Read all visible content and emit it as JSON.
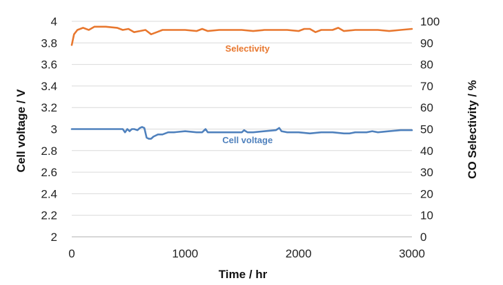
{
  "chart_data": {
    "type": "line",
    "xlabel": "Time / hr",
    "ylabel_left": "Cell voltage / V",
    "ylabel_right": "CO Selectivity / %",
    "xlim": [
      0,
      3000
    ],
    "x_ticks": [
      "0",
      "1000",
      "2000",
      "3000"
    ],
    "ylim_left": [
      2,
      4
    ],
    "y_ticks_left": [
      "2",
      "2.2",
      "2.4",
      "2.6",
      "2.8",
      "3",
      "3.2",
      "3.4",
      "3.6",
      "3.8",
      "4"
    ],
    "ylim_right": [
      0,
      100
    ],
    "y_ticks_right": [
      "0",
      "10",
      "20",
      "30",
      "40",
      "50",
      "60",
      "70",
      "80",
      "90",
      "100"
    ],
    "grid": "horizontal",
    "legend": "none",
    "series": [
      {
        "name": "Selectivity",
        "axis": "right",
        "color": "#E8772E",
        "x": [
          0,
          20,
          50,
          100,
          150,
          200,
          300,
          400,
          450,
          500,
          550,
          600,
          650,
          700,
          750,
          800,
          900,
          1000,
          1100,
          1150,
          1200,
          1300,
          1400,
          1500,
          1600,
          1700,
          1800,
          1900,
          2000,
          2050,
          2100,
          2150,
          2200,
          2300,
          2350,
          2400,
          2500,
          2600,
          2700,
          2800,
          2900,
          3000
        ],
        "values": [
          89,
          94,
          96,
          97,
          96,
          97.5,
          97.5,
          97,
          96,
          96.5,
          95,
          95.5,
          96,
          94,
          95,
          96,
          96,
          96,
          95.5,
          96.5,
          95.5,
          96,
          96,
          96,
          95.5,
          96,
          96,
          96,
          95.5,
          96.5,
          96.5,
          95,
          96,
          96,
          97,
          95.5,
          96,
          96,
          96,
          95.5,
          96,
          96.5
        ]
      },
      {
        "name": "Cell voltage",
        "axis": "left",
        "color": "#4F81BD",
        "x": [
          0,
          100,
          200,
          300,
          400,
          450,
          470,
          490,
          510,
          530,
          550,
          580,
          600,
          620,
          640,
          660,
          680,
          700,
          720,
          760,
          800,
          850,
          900,
          1000,
          1100,
          1150,
          1180,
          1200,
          1300,
          1400,
          1500,
          1520,
          1550,
          1600,
          1700,
          1800,
          1830,
          1850,
          1900,
          2000,
          2100,
          2200,
          2300,
          2400,
          2450,
          2500,
          2600,
          2650,
          2700,
          2800,
          2900,
          3000
        ],
        "values": [
          3.0,
          3.0,
          3.0,
          3.0,
          3.0,
          3.0,
          2.97,
          3.0,
          2.98,
          3.0,
          3.0,
          2.99,
          3.01,
          3.02,
          3.01,
          2.92,
          2.91,
          2.91,
          2.93,
          2.95,
          2.95,
          2.97,
          2.97,
          2.98,
          2.97,
          2.97,
          3.0,
          2.97,
          2.97,
          2.97,
          2.97,
          2.99,
          2.97,
          2.97,
          2.98,
          2.99,
          3.01,
          2.98,
          2.97,
          2.97,
          2.96,
          2.97,
          2.97,
          2.96,
          2.96,
          2.97,
          2.97,
          2.98,
          2.97,
          2.98,
          2.99,
          2.99
        ]
      }
    ],
    "annotations": [
      {
        "text": "Selectivity",
        "series": 0,
        "at_x": 1550,
        "axis": "right",
        "at_y": 86
      },
      {
        "text": "Cell voltage",
        "series": 1,
        "at_x": 1550,
        "axis": "left",
        "at_y": 2.87
      }
    ]
  }
}
